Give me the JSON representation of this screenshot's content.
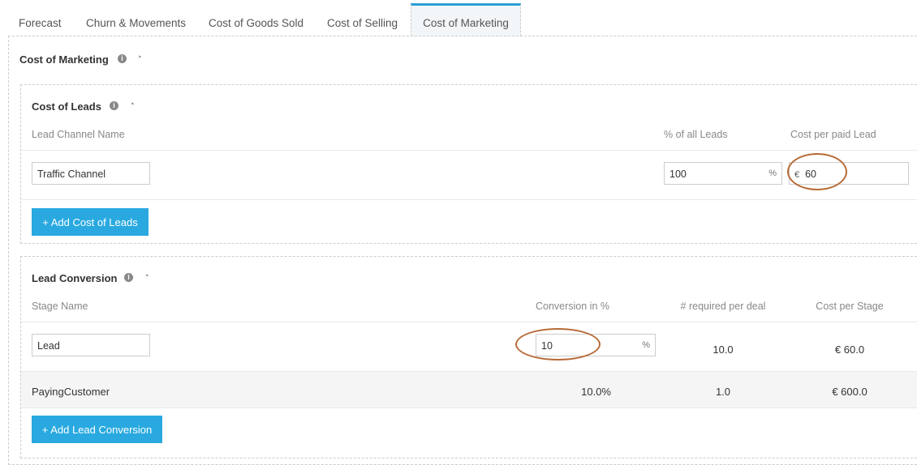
{
  "tabs": [
    {
      "label": "Forecast"
    },
    {
      "label": "Churn & Movements"
    },
    {
      "label": "Cost of Goods Sold"
    },
    {
      "label": "Cost of Selling"
    },
    {
      "label": "Cost of Marketing",
      "active": true
    }
  ],
  "section": {
    "title": "Cost of Marketing"
  },
  "leads": {
    "title": "Cost of Leads",
    "headers": [
      "Lead Channel Name",
      "% of all Leads",
      "Cost per paid Lead"
    ],
    "row": {
      "name": "Traffic Channel",
      "percent": "100",
      "percent_suffix": "%",
      "currency": "€",
      "cost": "60"
    },
    "add_label": "+ Add Cost of Leads"
  },
  "conversion": {
    "title": "Lead Conversion",
    "headers": [
      "Stage Name",
      "Conversion in %",
      "# required per deal",
      "Cost per Stage"
    ],
    "row": {
      "name": "Lead",
      "conversion": "10",
      "suffix": "%",
      "required": "10.0",
      "cost": "€ 60.0"
    },
    "final": {
      "name": "PayingCustomer",
      "conversion": "10.0%",
      "required": "1.0",
      "cost": "€ 600.0"
    },
    "add_label": "+ Add Lead Conversion"
  },
  "annotation_color": "#b86a36",
  "accent": "#29a9e0"
}
